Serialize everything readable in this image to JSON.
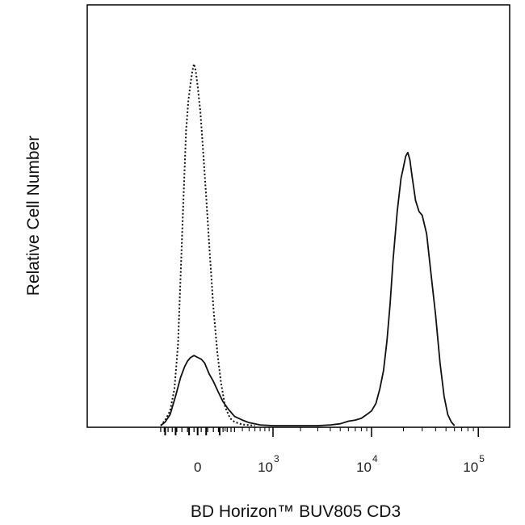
{
  "chart_data": {
    "type": "line",
    "title": "",
    "xlabel": "BD Horizon™ BUV805 CD3",
    "ylabel": "Relative Cell Number",
    "x_scale": "biexponential",
    "x_tick_labels": [
      {
        "base": "0",
        "exp": "",
        "value": 0
      },
      {
        "base": "10",
        "exp": "3",
        "value": 1000
      },
      {
        "base": "10",
        "exp": "4",
        "value": 10000
      },
      {
        "base": "10",
        "exp": "5",
        "value": 100000
      }
    ],
    "xlim": [
      -300,
      150000
    ],
    "ylim": [
      0,
      100
    ],
    "grid": false,
    "legend": "none",
    "series": [
      {
        "style": "dotted",
        "color": "#111111",
        "x": [
          -300,
          -250,
          -200,
          -160,
          -130,
          -110,
          -90,
          -70,
          -55,
          -40,
          -30,
          -20,
          -10,
          0,
          15,
          30,
          50,
          75,
          100,
          130,
          160,
          200,
          250,
          300,
          400,
          600
        ],
        "y": [
          0,
          1.5,
          4,
          10,
          22,
          40,
          60,
          80,
          88,
          93,
          96,
          98,
          96,
          92,
          85,
          75,
          62,
          46,
          32,
          20,
          12,
          5,
          2,
          1,
          0.3,
          0
        ]
      },
      {
        "style": "solid",
        "color": "#111111",
        "x": [
          -300,
          -250,
          -200,
          -150,
          -110,
          -80,
          -60,
          -40,
          -20,
          0,
          20,
          40,
          70,
          100,
          140,
          180,
          230,
          300,
          400,
          500,
          700,
          1000,
          2000,
          3000,
          4000,
          5000,
          6000,
          7000,
          8000,
          9000,
          10000,
          11000,
          12000,
          13000,
          14000,
          15000,
          16000,
          17500,
          19000,
          20000,
          21000,
          22000,
          23000,
          24000,
          26000,
          28000,
          30000,
          33000,
          36000,
          40000,
          44000,
          48000,
          52000,
          56000,
          60000
        ],
        "y": [
          0,
          1,
          3,
          8,
          13,
          16,
          17.5,
          18.5,
          19,
          18.5,
          18,
          17,
          14,
          12,
          9,
          6.5,
          4.5,
          2.5,
          1.5,
          0.8,
          0.2,
          0,
          0,
          0,
          0.2,
          0.5,
          1.2,
          1.5,
          2,
          3,
          4,
          6,
          10,
          15,
          23,
          33,
          45,
          58,
          67,
          70,
          73,
          74,
          72,
          68,
          61,
          58,
          57,
          52,
          42,
          30,
          17,
          8,
          3,
          1,
          0
        ]
      }
    ]
  }
}
